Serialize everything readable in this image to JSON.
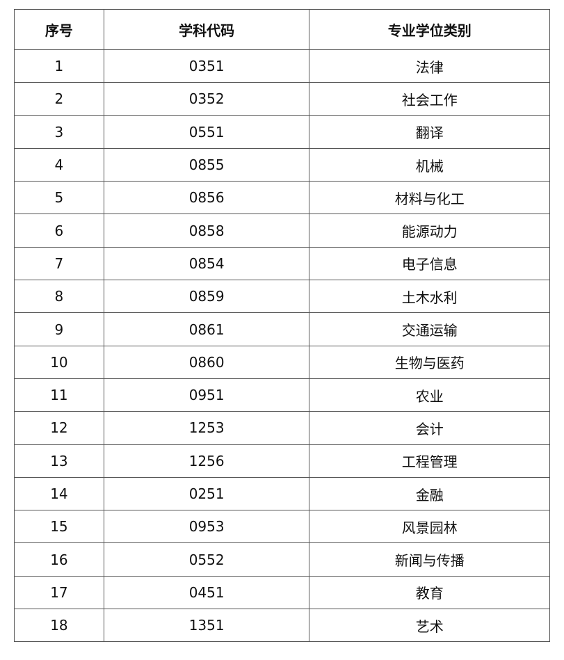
{
  "table": {
    "headers": [
      "序号",
      "学科代码",
      "专业学位类别"
    ],
    "rows": [
      [
        "1",
        "0351",
        "法律"
      ],
      [
        "2",
        "0352",
        "社会工作"
      ],
      [
        "3",
        "0551",
        "翻译"
      ],
      [
        "4",
        "0855",
        "机械"
      ],
      [
        "5",
        "0856",
        "材料与化工"
      ],
      [
        "6",
        "0858",
        "能源动力"
      ],
      [
        "7",
        "0854",
        "电子信息"
      ],
      [
        "8",
        "0859",
        "土木水利"
      ],
      [
        "9",
        "0861",
        "交通运输"
      ],
      [
        "10",
        "0860",
        "生物与医药"
      ],
      [
        "11",
        "0951",
        "农业"
      ],
      [
        "12",
        "1253",
        "会计"
      ],
      [
        "13",
        "1256",
        "工程管理"
      ],
      [
        "14",
        "0251",
        "金融"
      ],
      [
        "15",
        "0953",
        "风景园林"
      ],
      [
        "16",
        "0552",
        "新闻与传播"
      ],
      [
        "17",
        "0451",
        "教育"
      ],
      [
        "18",
        "1351",
        "艺术"
      ]
    ]
  }
}
